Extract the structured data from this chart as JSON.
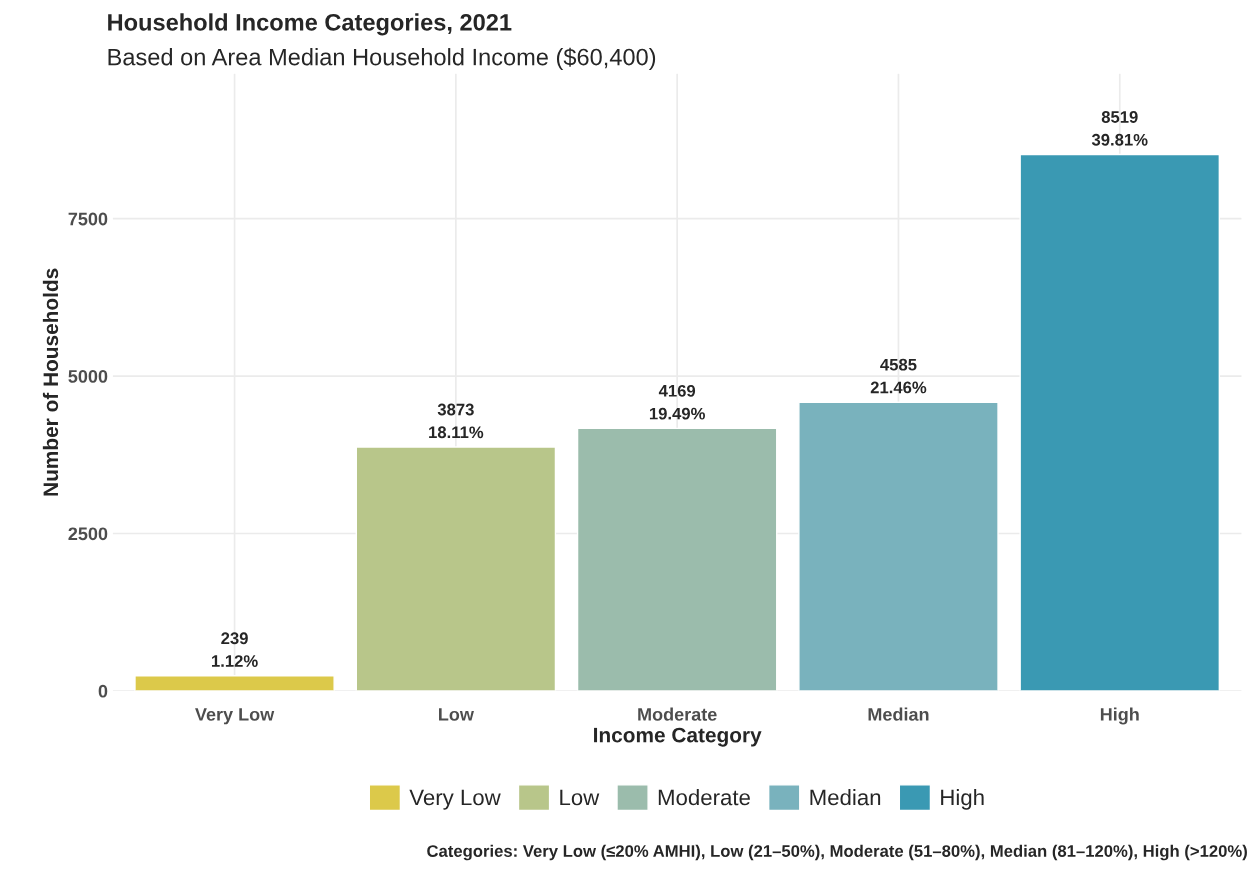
{
  "chart_data": {
    "type": "bar",
    "title": "Household Income Categories, 2021",
    "subtitle": "Based on Area Median Household Income ($60,400)",
    "xlabel": "Income Category",
    "ylabel": "Number of Households",
    "categories": [
      "Very Low",
      "Low",
      "Moderate",
      "Median",
      "High"
    ],
    "stacked": true,
    "series": [
      {
        "name": "Very Low",
        "color": "#dcc94a",
        "values": [
          239,
          null,
          null,
          null,
          null
        ],
        "value_labels": [
          "239\n1.12%",
          null,
          null,
          null,
          null
        ]
      },
      {
        "name": "Low",
        "color": "#b8c68a",
        "values": [
          null,
          3873,
          null,
          null,
          null
        ],
        "value_labels": [
          null,
          "3873\n18.11%",
          null,
          null,
          null
        ]
      },
      {
        "name": "Moderate",
        "color": "#9bbcac",
        "values": [
          null,
          null,
          4169,
          null,
          null
        ],
        "value_labels": [
          null,
          null,
          "4169\n19.49%",
          null,
          null
        ]
      },
      {
        "name": "Median",
        "color": "#79b2bd",
        "values": [
          null,
          null,
          null,
          4585,
          null
        ],
        "value_labels": [
          null,
          null,
          null,
          "4585\n21.46%",
          null
        ]
      },
      {
        "name": "High",
        "color": "#3a99b3",
        "values": [
          null,
          null,
          null,
          null,
          8519
        ],
        "value_labels": [
          null,
          null,
          null,
          null,
          "8519\n39.81%"
        ]
      }
    ],
    "ylim": [
      0,
      9800
    ],
    "yticks": [
      0,
      2500,
      5000,
      7500
    ],
    "grid": true,
    "legend": "bottom",
    "annotations": [
      "Categories: Very Low (≤20% AMHI), Low (21–50%), Moderate (51–80%), Median (81–120%), High (>120%)"
    ]
  }
}
